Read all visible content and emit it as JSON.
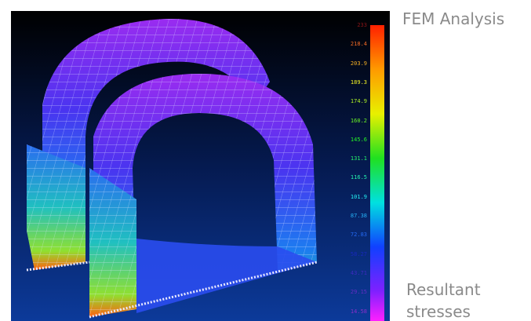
{
  "image": {
    "scale_labels": [
      "233",
      "218.4",
      "203.9",
      "189.3",
      "174.9",
      "160.2",
      "145.6",
      "131.1",
      "116.5",
      "101.9",
      "87.38",
      "72.83",
      "58.27",
      "43.71",
      "29.15",
      "14.58"
    ]
  },
  "caption": {
    "title": "FEM Analysis",
    "subtitle": "Resultant stresses"
  }
}
